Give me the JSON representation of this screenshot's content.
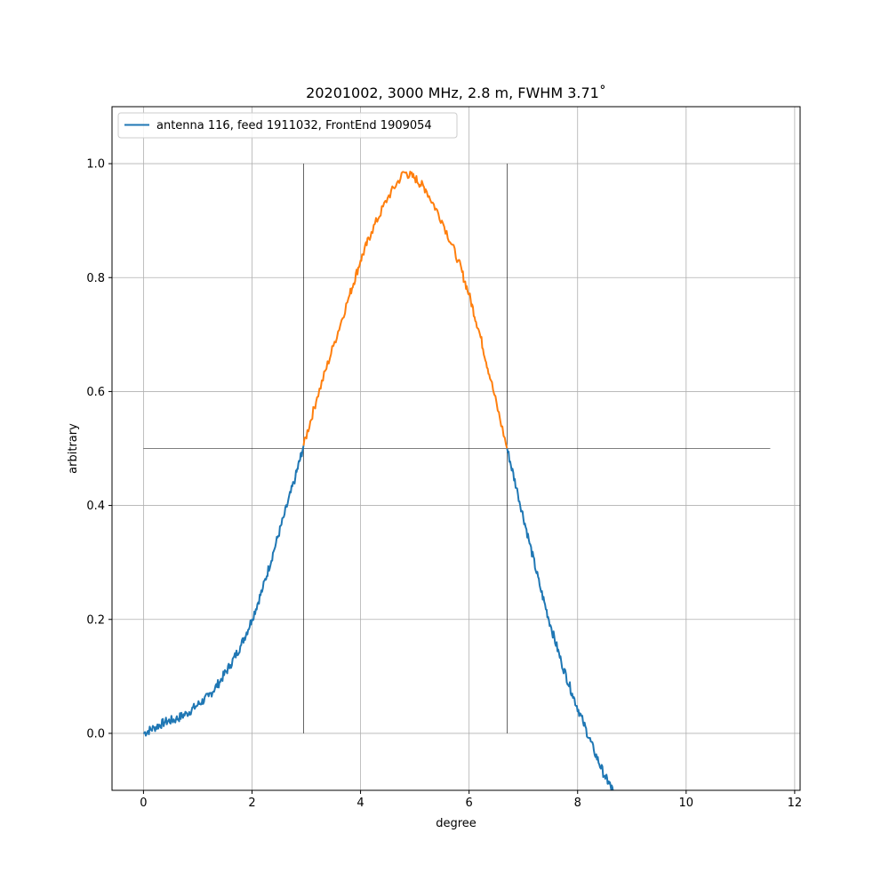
{
  "chart_data": {
    "type": "line",
    "title": "20201002, 3000 MHz, 2.8 m, FWHM 3.71$^\\circ$",
    "title_display": "20201002, 3000 MHz, 2.8 m, FWHM 3.71˚",
    "xlabel": "degree",
    "ylabel": "arbitrary",
    "xlim": [
      -0.58,
      12.1
    ],
    "ylim": [
      -0.1,
      1.1
    ],
    "xticks": [
      0,
      2,
      4,
      6,
      8,
      10,
      12
    ],
    "xtick_labels": [
      "0",
      "2",
      "4",
      "6",
      "8",
      "10",
      "12"
    ],
    "yticks": [
      0.0,
      0.2,
      0.4,
      0.6,
      0.8,
      1.0
    ],
    "ytick_labels": [
      "0.0",
      "0.2",
      "0.4",
      "0.6",
      "0.8",
      "1.0"
    ],
    "grid": true,
    "legend_position": "upper-left",
    "colors": {
      "beam": "#1f77b4",
      "main_lobe": "#ff7f0e",
      "markers": "#000000",
      "grid": "#b0b0b0"
    },
    "series": [
      {
        "name": "antenna 116, feed 1911032, FrontEnd 1909054",
        "color": "#1f77b4",
        "x": [
          0.0,
          0.2,
          0.4,
          0.6,
          0.8,
          1.0,
          1.2,
          1.4,
          1.6,
          1.8,
          2.0,
          2.2,
          2.4,
          2.6,
          2.8,
          2.95
        ],
        "y": [
          0.0,
          0.01,
          0.02,
          0.025,
          0.035,
          0.05,
          0.065,
          0.09,
          0.12,
          0.155,
          0.2,
          0.255,
          0.32,
          0.385,
          0.45,
          0.505
        ]
      },
      {
        "name": "",
        "color": "#ff7f0e",
        "x": [
          2.95,
          3.2,
          3.5,
          3.8,
          4.0,
          4.2,
          4.5,
          4.8,
          5.0,
          5.2,
          5.5,
          5.8,
          6.0,
          6.2,
          6.4,
          6.7
        ],
        "y": [
          0.505,
          0.59,
          0.68,
          0.77,
          0.83,
          0.88,
          0.94,
          0.985,
          0.975,
          0.955,
          0.9,
          0.83,
          0.77,
          0.7,
          0.62,
          0.5
        ]
      },
      {
        "name": "",
        "color": "#1f77b4",
        "x": [
          6.7,
          6.9,
          7.1,
          7.3,
          7.5,
          7.7,
          7.9,
          8.1,
          8.3,
          8.5,
          8.65
        ],
        "y": [
          0.5,
          0.42,
          0.34,
          0.26,
          0.19,
          0.125,
          0.07,
          0.02,
          -0.03,
          -0.075,
          -0.1
        ]
      }
    ],
    "markers": {
      "half_power_level": 0.5,
      "half_power_span": [
        0.0,
        11.55
      ],
      "left_crossing_x": 2.95,
      "right_crossing_x": 6.7,
      "vertical_span": [
        0.0,
        1.0
      ]
    },
    "legend": [
      {
        "label": "antenna 116, feed 1911032, FrontEnd 1909054",
        "color": "#1f77b4"
      }
    ]
  }
}
